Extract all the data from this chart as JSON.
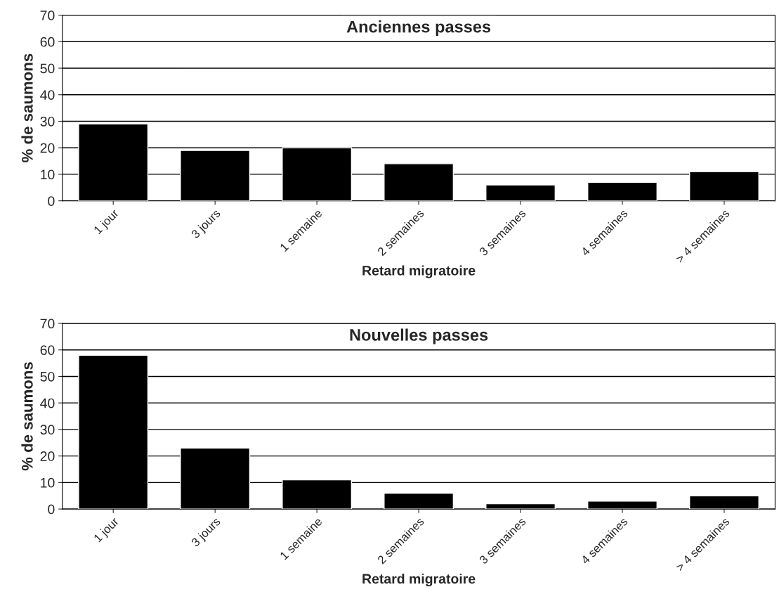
{
  "chart_data": [
    {
      "type": "bar",
      "title": "Anciennes passes",
      "xlabel": "Retard migratoire",
      "ylabel": "% de saumons",
      "categories": [
        "1 jour",
        "3 jours",
        "1 semaine",
        "2 semaines",
        "3 semaines",
        "4 semaines",
        "> 4 semaines"
      ],
      "values": [
        29,
        19,
        20,
        14,
        6,
        7,
        11
      ],
      "color": "#000000",
      "ylim": [
        0,
        70
      ],
      "yticks": [
        0,
        10,
        20,
        30,
        40,
        50,
        60,
        70
      ],
      "grid": "y"
    },
    {
      "type": "bar",
      "title": "Nouvelles passes",
      "xlabel": "Retard migratoire",
      "ylabel": "% de saumons",
      "categories": [
        "1 jour",
        "3 jours",
        "1 semaine",
        "2 semaines",
        "3 semaines",
        "4 semaines",
        "> 4 semaines"
      ],
      "values": [
        58,
        23,
        11,
        6,
        2,
        3,
        5
      ],
      "color": "#000000",
      "ylim": [
        0,
        70
      ],
      "yticks": [
        0,
        10,
        20,
        30,
        40,
        50,
        60,
        70
      ],
      "grid": "y"
    }
  ]
}
